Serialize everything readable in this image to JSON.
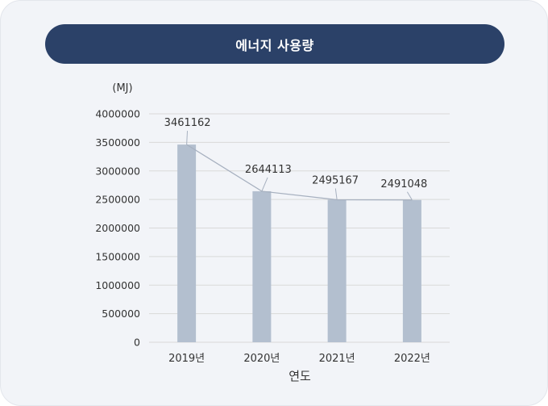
{
  "header": {
    "title": "에너지 사용량"
  },
  "colors": {
    "bar": "#b3bfcf",
    "line": "#a6b0bf",
    "pill": "#2b4168",
    "grid": "#d9d9d9"
  },
  "chart_data": {
    "type": "bar",
    "title": "",
    "xlabel": "연도",
    "ylabel": "(MJ)",
    "categories": [
      "2019년",
      "2020년",
      "2021년",
      "2022년"
    ],
    "values": [
      3461162,
      2644113,
      2495167,
      2491048
    ],
    "ylim": [
      0,
      4000000
    ],
    "yticks": [
      0,
      500000,
      1000000,
      1500000,
      2000000,
      2500000,
      3000000,
      3500000,
      4000000
    ],
    "grid": true,
    "connector_line": true,
    "data_labels": [
      "3461162",
      "2644113",
      "2495167",
      "2491048"
    ]
  }
}
